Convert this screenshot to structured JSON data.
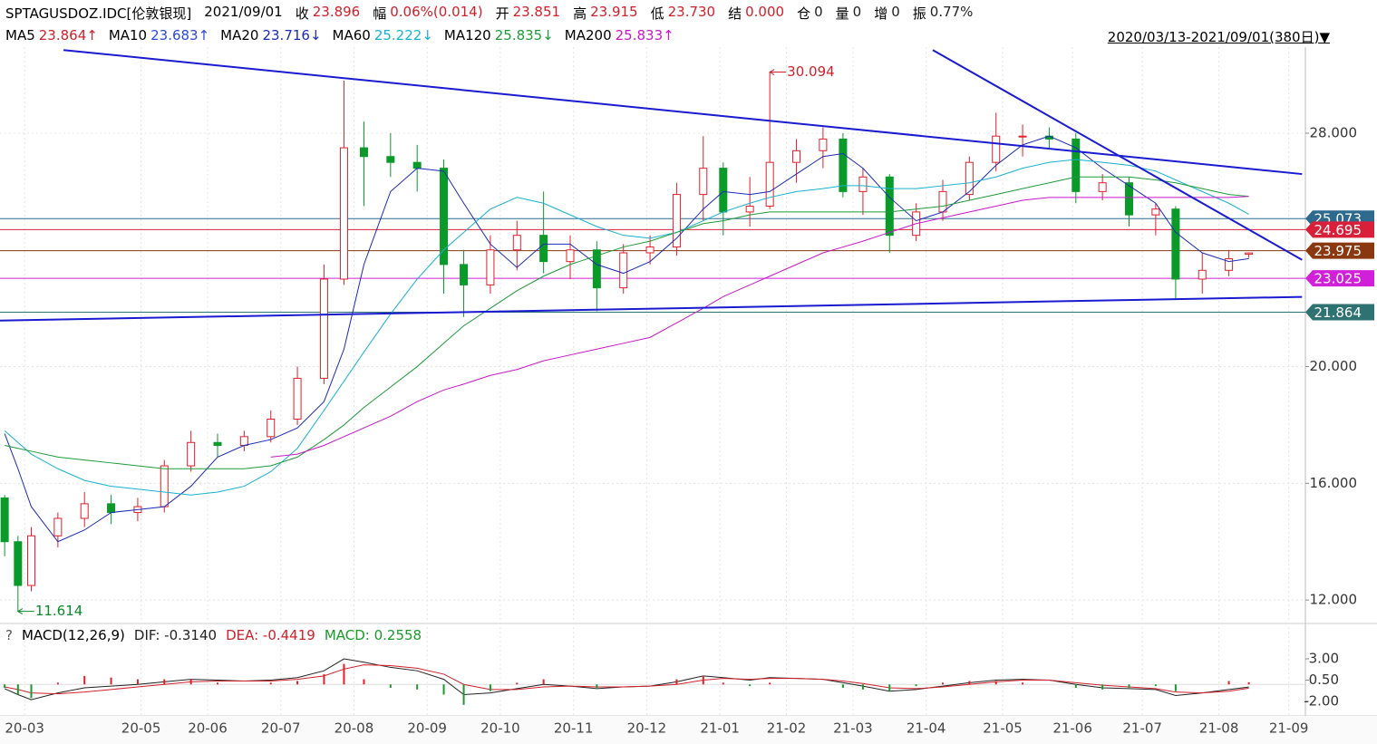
{
  "header": {
    "symbol": "SPTAGUSDOZ.IDC[伦敦银现]",
    "date": "2021/09/01",
    "fields": [
      {
        "label": "收",
        "value": "23.896",
        "color": "#d0202a"
      },
      {
        "label": "幅",
        "value": "0.06%(0.014)",
        "color": "#d0202a"
      },
      {
        "label": "开",
        "value": "23.851",
        "color": "#d0202a"
      },
      {
        "label": "高",
        "value": "23.915",
        "color": "#d0202a"
      },
      {
        "label": "低",
        "value": "23.730",
        "color": "#d0202a"
      },
      {
        "label": "结",
        "value": "0.000",
        "color": "#d0202a"
      },
      {
        "label": "仓",
        "value": "0",
        "color": "#222"
      },
      {
        "label": "量",
        "value": "0",
        "color": "#222"
      },
      {
        "label": "增",
        "value": "0",
        "color": "#222"
      },
      {
        "label": "振",
        "value": "0.77%",
        "color": "#222"
      }
    ],
    "range": "2020/03/13-2021/09/01(380日)▼"
  },
  "chart_data": [
    {
      "type": "candlestick",
      "up_color": "#e0202a",
      "down_color": "#0a9a2a",
      "x": [
        0,
        4,
        8,
        16,
        24,
        32,
        40,
        48,
        56,
        64,
        72,
        80,
        88,
        96,
        102,
        108,
        116,
        124,
        132,
        138,
        146,
        154,
        162,
        170,
        178,
        186,
        194,
        202,
        210,
        216,
        224,
        230,
        238,
        246,
        252,
        258,
        266,
        274,
        282,
        290,
        298,
        306,
        314,
        322,
        330,
        338,
        346,
        352,
        360,
        368,
        374
      ],
      "open": [
        15.5,
        14,
        12.5,
        14.2,
        14.8,
        15.3,
        15.0,
        15.2,
        16.6,
        17.4,
        17.3,
        17.6,
        18.2,
        19.6,
        23.0,
        27.5,
        27.2,
        27.0,
        26.8,
        23.5,
        22.8,
        24.0,
        24.5,
        23.6,
        24.0,
        22.7,
        23.9,
        24.1,
        25.9,
        26.8,
        25.3,
        25.5,
        27.0,
        27.4,
        27.8,
        26.0,
        26.5,
        24.5,
        25.3,
        25.9,
        27.0,
        27.9,
        27.9,
        27.8,
        26.0,
        26.3,
        25.2,
        25.4,
        23.0,
        23.3,
        23.851
      ],
      "high": [
        15.6,
        14.2,
        14.5,
        15.0,
        15.7,
        15.6,
        15.5,
        16.8,
        17.8,
        17.7,
        17.8,
        18.5,
        20.0,
        23.5,
        29.8,
        28.4,
        28.0,
        27.6,
        27.1,
        24.0,
        24.5,
        25.0,
        26.0,
        24.5,
        24.3,
        24.2,
        24.5,
        26.3,
        27.9,
        27.0,
        26.5,
        30.094,
        27.8,
        28.2,
        28.0,
        26.8,
        26.6,
        25.6,
        26.4,
        27.2,
        28.7,
        28.3,
        28.2,
        28.0,
        26.6,
        26.5,
        25.6,
        25.5,
        23.9,
        24.0,
        23.915
      ],
      "low": [
        13.5,
        11.614,
        12.3,
        13.8,
        14.5,
        14.6,
        14.7,
        15.0,
        16.4,
        16.9,
        17.1,
        17.4,
        18.0,
        19.4,
        22.8,
        25.5,
        26.5,
        26.0,
        22.5,
        21.7,
        22.5,
        23.3,
        23.2,
        23.0,
        21.9,
        22.5,
        23.5,
        23.8,
        25.0,
        24.5,
        24.8,
        25.4,
        26.3,
        26.8,
        25.8,
        25.2,
        23.9,
        24.3,
        25.0,
        25.7,
        26.7,
        27.2,
        27.5,
        25.6,
        25.7,
        24.8,
        24.5,
        22.3,
        22.5,
        23.1,
        23.73
      ],
      "close": [
        14,
        12.5,
        14.2,
        14.8,
        15.3,
        15.0,
        15.2,
        16.6,
        17.4,
        17.3,
        17.6,
        18.2,
        19.6,
        23.0,
        27.5,
        27.2,
        27.0,
        26.8,
        23.5,
        22.8,
        24.0,
        24.5,
        23.6,
        24.0,
        22.7,
        23.9,
        24.1,
        25.9,
        26.8,
        25.3,
        25.5,
        27.0,
        27.4,
        27.8,
        26.0,
        26.5,
        24.5,
        25.3,
        26.0,
        27.0,
        27.9,
        27.9,
        27.8,
        26.0,
        26.3,
        25.2,
        25.4,
        23.0,
        23.3,
        23.7,
        23.896
      ],
      "series": [
        {
          "name": "MA5",
          "label": "23.864↑",
          "color": "#d0202a"
        },
        {
          "name": "MA10",
          "label": "23.683↑",
          "color": "#2a4ad8"
        },
        {
          "name": "MA20",
          "label": "23.716↓",
          "color": "#1a2ab8",
          "values": [
            17.7,
            16.5,
            15.2,
            14.0,
            14.4,
            15.0,
            15.1,
            15.2,
            15.9,
            16.9,
            17.3,
            17.5,
            17.9,
            18.8,
            20.6,
            23.5,
            26.0,
            26.8,
            26.7,
            25.6,
            24.2,
            23.4,
            24.2,
            24.2,
            23.5,
            23.2,
            23.6,
            24.4,
            25.4,
            26.0,
            25.9,
            26.0,
            26.6,
            27.2,
            27.3,
            26.8,
            25.8,
            25.0,
            25.3,
            26.0,
            26.9,
            27.6,
            27.9,
            27.5,
            26.8,
            26.2,
            25.6,
            24.6,
            23.9,
            23.6,
            23.7
          ]
        },
        {
          "name": "MA60",
          "label": "25.222↓",
          "color": "#18b0d0",
          "values": [
            17.8,
            17.4,
            17.0,
            16.5,
            16.1,
            15.9,
            15.8,
            15.7,
            15.6,
            15.7,
            15.9,
            16.4,
            17.2,
            18.5,
            19.5,
            20.5,
            21.8,
            23.0,
            24.0,
            24.6,
            25.4,
            25.8,
            25.6,
            25.2,
            24.8,
            24.5,
            24.4,
            24.6,
            25.0,
            25.3,
            25.6,
            25.8,
            26.0,
            26.1,
            26.2,
            26.2,
            26.1,
            26.1,
            26.2,
            26.3,
            26.5,
            26.8,
            27.0,
            27.1,
            27.0,
            26.9,
            26.7,
            26.4,
            26.0,
            25.6,
            25.222
          ]
        },
        {
          "name": "MA120",
          "label": "25.835↓",
          "color": "#1f9a3a",
          "values": [
            17.3,
            17.2,
            17.1,
            16.9,
            16.8,
            16.7,
            16.6,
            16.5,
            16.5,
            16.5,
            16.5,
            16.6,
            16.9,
            17.5,
            18.0,
            18.6,
            19.3,
            20.0,
            20.8,
            21.4,
            22.0,
            22.6,
            23.1,
            23.5,
            23.8,
            24.1,
            24.3,
            24.6,
            24.9,
            25.0,
            25.2,
            25.3,
            25.3,
            25.3,
            25.3,
            25.3,
            25.3,
            25.4,
            25.5,
            25.7,
            25.9,
            26.1,
            26.3,
            26.5,
            26.5,
            26.5,
            26.4,
            26.3,
            26.1,
            25.9,
            25.835
          ]
        },
        {
          "name": "MA200",
          "label": "25.833↑",
          "color": "#c818c8",
          "values": [
            null,
            null,
            null,
            null,
            null,
            null,
            null,
            null,
            null,
            null,
            null,
            16.9,
            17.0,
            17.3,
            17.6,
            17.9,
            18.3,
            18.8,
            19.2,
            19.4,
            19.7,
            19.9,
            20.2,
            20.4,
            20.6,
            20.8,
            21.0,
            21.5,
            22.0,
            22.4,
            22.8,
            23.1,
            23.5,
            23.9,
            24.1,
            24.3,
            24.6,
            24.9,
            25.1,
            25.3,
            25.5,
            25.7,
            25.8,
            25.8,
            25.8,
            25.8,
            25.8,
            25.8,
            25.8,
            25.8,
            25.833
          ]
        }
      ],
      "levels": [
        {
          "value": 25.073,
          "color": "#2e6a8e"
        },
        {
          "value": 24.695,
          "color": "#d8203a"
        },
        {
          "value": 23.975,
          "color": "#8a3810"
        },
        {
          "value": 23.025,
          "color": "#d020d8"
        },
        {
          "value": 21.864,
          "color": "#2e7272"
        }
      ],
      "trendlines": [
        {
          "x": [
            17.7,
            390
          ],
          "y": [
            30.85,
            26.6
          ],
          "color": "#1a1ad0"
        },
        {
          "x": [
            279,
            390
          ],
          "y": [
            30.85,
            23.66
          ],
          "color": "#1a1ad0"
        },
        {
          "x": [
            -1.4,
            390
          ],
          "y": [
            21.58,
            22.39
          ],
          "color": "#1a1ad0"
        }
      ],
      "annotations": [
        {
          "x": 230,
          "value": 30.094,
          "color": "#d0202a"
        },
        {
          "x": 4,
          "value": 11.614,
          "color": "#0a8a2a"
        }
      ],
      "xlim": [
        -1.4,
        391
      ],
      "ylim": [
        11.29,
        30.95
      ],
      "yticks": [
        {
          "value": 12,
          "label": "12.000"
        },
        {
          "value": 16,
          "label": "16.000"
        },
        {
          "value": 20,
          "label": "20.000"
        },
        {
          "value": 28,
          "label": "28.000"
        }
      ],
      "xticks": [
        {
          "value": 6,
          "label": "20-03"
        },
        {
          "value": 41,
          "label": "20-05"
        },
        {
          "value": 61,
          "label": "20-06"
        },
        {
          "value": 83,
          "label": "20-07"
        },
        {
          "value": 105,
          "label": "20-08"
        },
        {
          "value": 127,
          "label": "20-09"
        },
        {
          "value": 149,
          "label": "20-10"
        },
        {
          "value": 171,
          "label": "20-11"
        },
        {
          "value": 193,
          "label": "20-12"
        },
        {
          "value": 215,
          "label": "21-01"
        },
        {
          "value": 235,
          "label": "21-02"
        },
        {
          "value": 255,
          "label": "21-03"
        },
        {
          "value": 277,
          "label": "21-04"
        },
        {
          "value": 300,
          "label": "21-05"
        },
        {
          "value": 321,
          "label": "21-06"
        },
        {
          "value": 342,
          "label": "21-07"
        },
        {
          "value": 365,
          "label": "21-08"
        },
        {
          "value": 386,
          "label": "21-09"
        }
      ]
    },
    {
      "type": "macd",
      "help": "?",
      "title": "MACD(12,26,9)",
      "series": [
        {
          "legend": "DIF: -0.3140",
          "color": "#222222",
          "values": [
            -0.5,
            -1.2,
            -1.8,
            -1.0,
            -0.4,
            -0.2,
            0.0,
            0.3,
            0.6,
            0.5,
            0.4,
            0.5,
            0.8,
            1.6,
            3.0,
            2.6,
            2.0,
            1.6,
            0.6,
            -1.2,
            -1.0,
            -0.5,
            0.0,
            -0.2,
            -0.5,
            -0.3,
            -0.2,
            0.3,
            1.0,
            0.8,
            0.5,
            0.8,
            0.7,
            0.6,
            0.2,
            -0.2,
            -0.8,
            -0.6,
            -0.2,
            0.2,
            0.5,
            0.6,
            0.5,
            0.0,
            -0.4,
            -0.5,
            -0.6,
            -1.3,
            -1.0,
            -0.6,
            -0.314
          ]
        },
        {
          "legend": "DEA: -0.4419",
          "color": "#d0202a",
          "values": [
            -0.3,
            -0.6,
            -1.0,
            -1.1,
            -0.9,
            -0.6,
            -0.3,
            0.0,
            0.3,
            0.4,
            0.4,
            0.4,
            0.6,
            1.0,
            1.8,
            2.3,
            2.2,
            1.9,
            1.2,
            0.0,
            -0.6,
            -0.6,
            -0.3,
            -0.2,
            -0.3,
            -0.3,
            -0.2,
            0.0,
            0.5,
            0.7,
            0.6,
            0.7,
            0.7,
            0.6,
            0.4,
            0.1,
            -0.4,
            -0.5,
            -0.3,
            0.0,
            0.3,
            0.5,
            0.5,
            0.2,
            -0.1,
            -0.3,
            -0.5,
            -0.9,
            -1.0,
            -0.8,
            -0.442
          ]
        },
        {
          "legend": "MACD: 0.2558",
          "color": "#1a9a2a",
          "up_color": "#e0202a",
          "down_color": "#1a9a2a",
          "bars": true,
          "values": [
            -0.4,
            -1.2,
            -1.6,
            0.2,
            1.0,
            0.8,
            0.6,
            0.6,
            0.6,
            0.2,
            0,
            0.2,
            0.4,
            1.2,
            2.4,
            0.6,
            -0.4,
            -0.6,
            -1.2,
            -2.4,
            -0.8,
            0.2,
            0.6,
            0,
            -0.4,
            0,
            0,
            0.6,
            1.0,
            0.2,
            -0.2,
            0.2,
            0,
            0,
            -0.4,
            -0.6,
            -0.8,
            -0.2,
            0.2,
            0.4,
            0.4,
            0.2,
            0,
            -0.4,
            -0.6,
            -0.4,
            -0.2,
            -0.8,
            0,
            0.4,
            0.2558
          ]
        }
      ],
      "ylim": [
        -3.7,
        4.28
      ],
      "yticks": [
        {
          "value": 3,
          "label": "3.00"
        },
        {
          "value": 0.5,
          "label": "0.50"
        },
        {
          "value": -2,
          "label": "-2.00"
        }
      ]
    }
  ]
}
